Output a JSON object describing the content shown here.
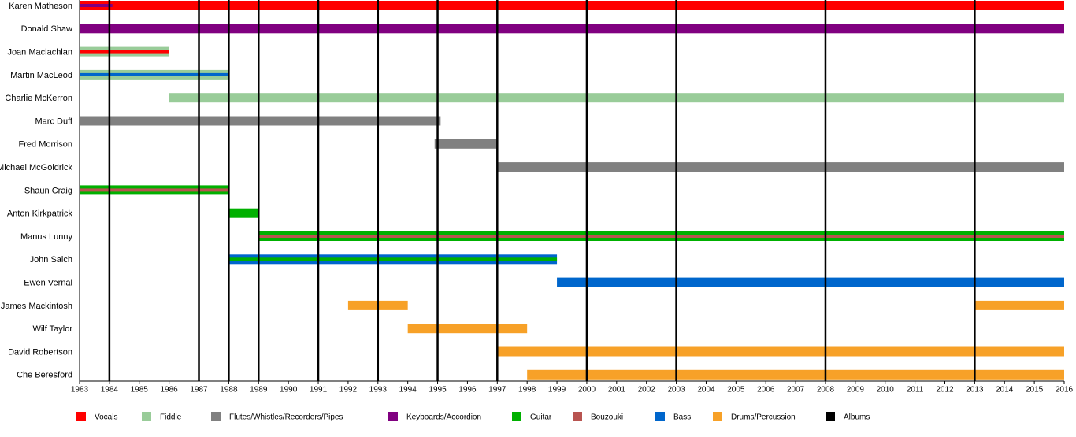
{
  "chart_data": {
    "type": "timeline",
    "xlim": [
      1983,
      2016
    ],
    "xticks": [
      1983,
      1984,
      1985,
      1986,
      1987,
      1988,
      1989,
      1990,
      1991,
      1992,
      1993,
      1994,
      1995,
      1996,
      1997,
      1998,
      1999,
      2000,
      2001,
      2002,
      2003,
      2004,
      2005,
      2006,
      2007,
      2008,
      2009,
      2010,
      2011,
      2012,
      2013,
      2014,
      2015,
      2016
    ],
    "roles": [
      {
        "name": "Vocals",
        "color": "#ff0000"
      },
      {
        "name": "Fiddle",
        "color": "#99cc99"
      },
      {
        "name": "Flutes/Whistles/Recorders/Pipes",
        "color": "#808080"
      },
      {
        "name": "Keyboards/Accordion",
        "color": "#800080"
      },
      {
        "name": "Guitar",
        "color": "#00b000"
      },
      {
        "name": "Bouzouki",
        "color": "#b85450"
      },
      {
        "name": "Bass",
        "color": "#0066cc"
      },
      {
        "name": "Drums/Percussion",
        "color": "#f7a128"
      },
      {
        "name": "Albums",
        "color": "#000000"
      }
    ],
    "albums": [
      1984,
      1987,
      1988,
      1989,
      1991,
      1993,
      1995,
      1997,
      2000,
      2003,
      2008,
      2013
    ],
    "rows": [
      {
        "name": "Karen Matheson",
        "bars": [
          {
            "role": "Vocals",
            "start": 1983,
            "end": 2016
          }
        ],
        "accents": [
          {
            "role": "Keyboards/Accordion",
            "start": 1983,
            "end": 1984.1
          }
        ]
      },
      {
        "name": "Donald Shaw",
        "bars": [
          {
            "role": "Keyboards/Accordion",
            "start": 1983,
            "end": 2016
          }
        ],
        "accents": []
      },
      {
        "name": "Joan Maclachlan",
        "bars": [
          {
            "role": "Fiddle",
            "start": 1983,
            "end": 1986
          }
        ],
        "accents": [
          {
            "role": "Vocals",
            "start": 1983,
            "end": 1986
          }
        ]
      },
      {
        "name": "Martin MacLeod",
        "bars": [
          {
            "role": "Fiddle",
            "start": 1983,
            "end": 1988
          }
        ],
        "accents": [
          {
            "role": "Bass",
            "start": 1983,
            "end": 1988
          }
        ]
      },
      {
        "name": "Charlie McKerron",
        "bars": [
          {
            "role": "Fiddle",
            "start": 1986,
            "end": 2016
          }
        ],
        "accents": []
      },
      {
        "name": "Marc Duff",
        "bars": [
          {
            "role": "Flutes/Whistles/Recorders/Pipes",
            "start": 1983,
            "end": 1995.1
          }
        ],
        "accents": []
      },
      {
        "name": "Fred Morrison",
        "bars": [
          {
            "role": "Flutes/Whistles/Recorders/Pipes",
            "start": 1994.9,
            "end": 1997
          }
        ],
        "accents": []
      },
      {
        "name": "Michael McGoldrick",
        "bars": [
          {
            "role": "Flutes/Whistles/Recorders/Pipes",
            "start": 1997,
            "end": 2016
          }
        ],
        "accents": []
      },
      {
        "name": "Shaun Craig",
        "bars": [
          {
            "role": "Guitar",
            "start": 1983,
            "end": 1988
          }
        ],
        "accents": [
          {
            "role": "Bouzouki",
            "start": 1983,
            "end": 1988
          }
        ]
      },
      {
        "name": "Anton Kirkpatrick",
        "bars": [
          {
            "role": "Guitar",
            "start": 1988,
            "end": 1989
          }
        ],
        "accents": []
      },
      {
        "name": "Manus Lunny",
        "bars": [
          {
            "role": "Guitar",
            "start": 1989,
            "end": 2016
          }
        ],
        "accents": [
          {
            "role": "Bouzouki",
            "start": 1989,
            "end": 2016
          }
        ]
      },
      {
        "name": "John Saich",
        "bars": [
          {
            "role": "Bass",
            "start": 1988,
            "end": 1999
          }
        ],
        "accents": [
          {
            "role": "Guitar",
            "start": 1988,
            "end": 1999
          }
        ]
      },
      {
        "name": "Ewen Vernal",
        "bars": [
          {
            "role": "Bass",
            "start": 1999,
            "end": 2016
          }
        ],
        "accents": []
      },
      {
        "name": "James Mackintosh",
        "bars": [
          {
            "role": "Drums/Percussion",
            "start": 1992,
            "end": 1994
          },
          {
            "role": "Drums/Percussion",
            "start": 2013,
            "end": 2016
          }
        ],
        "accents": []
      },
      {
        "name": "Wilf Taylor",
        "bars": [
          {
            "role": "Drums/Percussion",
            "start": 1994,
            "end": 1998
          }
        ],
        "accents": []
      },
      {
        "name": "David Robertson",
        "bars": [
          {
            "role": "Drums/Percussion",
            "start": 1997,
            "end": 2016
          }
        ],
        "accents": []
      },
      {
        "name": "Che Beresford",
        "bars": [
          {
            "role": "Drums/Percussion",
            "start": 1998,
            "end": 2016
          }
        ],
        "accents": []
      }
    ]
  }
}
